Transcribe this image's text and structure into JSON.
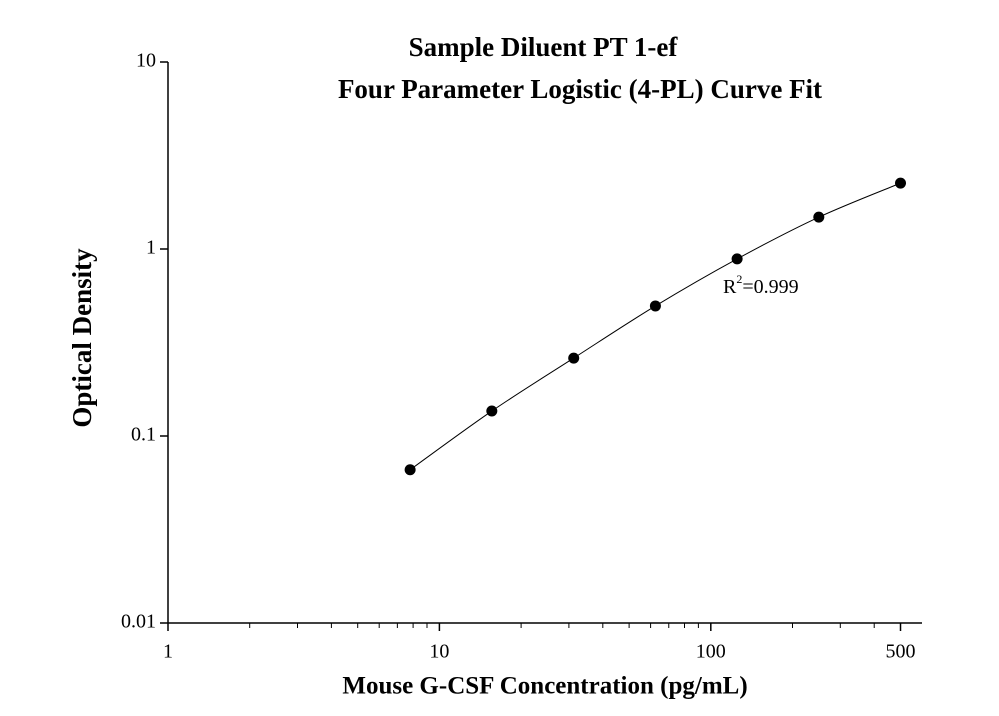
{
  "chart_data": {
    "type": "scatter",
    "title": [
      "Sample Diluent PT 1-ef",
      "Four Parameter Logistic (4-PL) Curve Fit"
    ],
    "x_label": "Mouse G-CSF Concentration (pg/mL)",
    "y_label": "Optical Density",
    "x": [
      7.8,
      15.6,
      31.25,
      62.5,
      125,
      250,
      500
    ],
    "values": [
      0.066,
      0.136,
      0.261,
      0.496,
      0.885,
      1.48,
      2.25
    ],
    "color": "#000000",
    "x_log": true,
    "y_log": true,
    "xlim": [
      1,
      600
    ],
    "ylim": [
      0.01,
      10
    ],
    "xticks": [
      1,
      10,
      100,
      500
    ],
    "xminorticks": [
      2,
      3,
      4,
      5,
      6,
      7,
      8,
      9,
      20,
      30,
      40,
      50,
      60,
      70,
      80,
      90,
      200,
      300,
      400
    ],
    "yticks": [
      0.01,
      0.1,
      1,
      10
    ],
    "annotation": {
      "base": "R",
      "sup": "2",
      "rest": "=0.999"
    },
    "fit_line": true
  }
}
